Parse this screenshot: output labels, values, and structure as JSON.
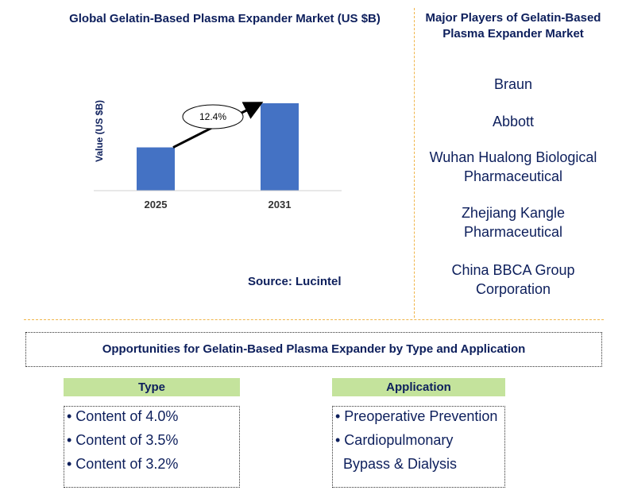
{
  "chart_data": {
    "type": "bar",
    "title": "Global Gelatin-Based Plasma Expander Market (US $B)",
    "ylabel": "Value (US $B)",
    "categories": [
      "2025",
      "2031"
    ],
    "values": [
      1.0,
      2.02
    ],
    "annotation": "12.4%",
    "bar_color": "#4472c4"
  },
  "source": "Source: Lucintel",
  "players": {
    "title": "Major Players of Gelatin-Based Plasma Expander Market",
    "items": [
      "Braun",
      "Abbott",
      "Wuhan Hualong Biological Pharmaceutical",
      "Zhejiang Kangle Pharmaceutical",
      "China BBCA Group Corporation"
    ]
  },
  "opportunities": {
    "title": "Opportunities for Gelatin-Based Plasma Expander by Type and Application",
    "type": {
      "header": "Type",
      "items": [
        "• Content of 4.0%",
        "• Content of 3.5%",
        "• Content of 3.2%"
      ]
    },
    "application": {
      "header": "Application",
      "items": [
        "• Preoperative Prevention",
        "• Cardiopulmonary",
        "Bypass & Dialysis"
      ]
    }
  },
  "colors": {
    "text": "#0d1f5c",
    "divider": "#f0b54a",
    "header_bg": "#c4e39c"
  }
}
